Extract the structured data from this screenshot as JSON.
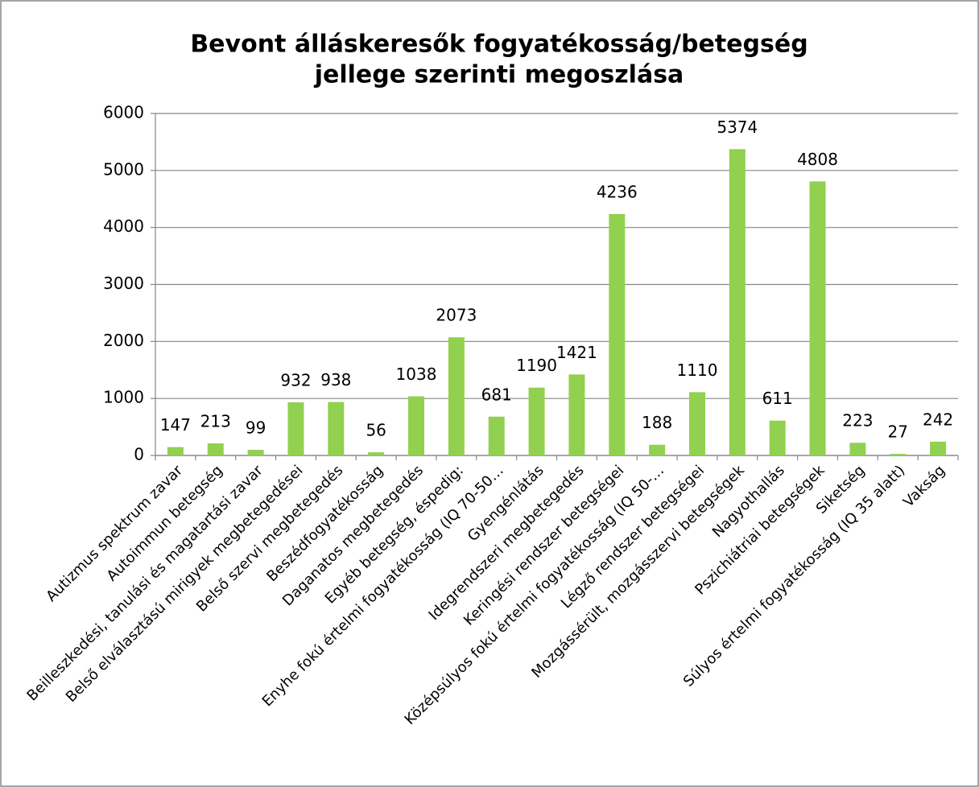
{
  "chart_data": {
    "type": "bar",
    "title": [
      "Bevont álláskeresők fogyatékosság/betegség",
      "jellege szerinti megoszlása"
    ],
    "categories": [
      "Autizmus spektrum zavar",
      "Autoimmun betegség",
      "Beilleszkedési, tanulási és magatartási zavar",
      "Belső elválasztású mirigyek megbetegedései",
      "Belső szervi megbetegedés",
      "Beszédfogyatékosság",
      "Daganatos megbetegedés",
      "Egyéb betegség, éspedig:",
      "Enyhe fokú értelmi fogyatékosság (IQ 70-50…",
      "Gyengénlátás",
      "Idegrendszeri megbetegedés",
      "Keringési rendszer betegségei",
      "Középsúlyos fokú értelmi fogyatékosság (IQ 50-…",
      "Légző rendszer betegségei",
      "Mozgássérült, mozgásszervi betegségek",
      "Nagyothallás",
      "Pszichiátriai betegségek",
      "Siketség",
      "Súlyos értelmi fogyatékosság (IQ 35 alatt)",
      "Vakság"
    ],
    "values": [
      147,
      213,
      99,
      932,
      938,
      56,
      1038,
      2073,
      681,
      1190,
      1421,
      4236,
      188,
      1110,
      5374,
      611,
      4808,
      223,
      27,
      242
    ],
    "color": "#92d050",
    "ylim": [
      0,
      6000
    ],
    "yticks": [
      0,
      1000,
      2000,
      3000,
      4000,
      5000,
      6000
    ],
    "grid": true
  }
}
